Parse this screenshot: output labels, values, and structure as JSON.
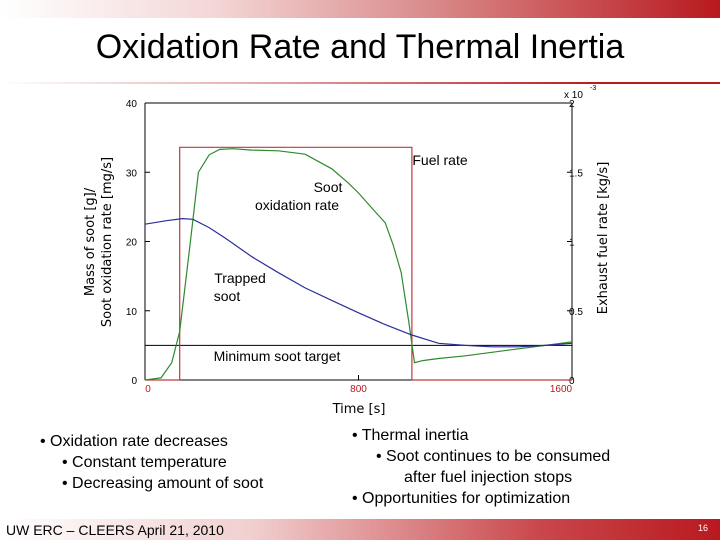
{
  "slide": {
    "title": "Oxidation Rate and Thermal Inertia",
    "footer": "UW ERC – CLEERS April 21, 2010",
    "page_number": "16",
    "accent_color": "#b8191e"
  },
  "bullets_left": {
    "main": "• Oxidation rate decreases",
    "sub1": "• Constant temperature",
    "sub2": "• Decreasing amount of soot"
  },
  "bullets_right": {
    "main1": "• Thermal inertia",
    "sub1": "• Soot continues to be consumed",
    "sub1b": "after fuel injection stops",
    "main2": "• Opportunities for optimization"
  },
  "chart_data": {
    "type": "line",
    "xlabel": "Time [s]",
    "ylabel_line1": "Mass of soot [g]/",
    "ylabel_line2": "Soot oxidation rate [mg/s]",
    "y2label": "Exhaust fuel rate [kg/s]",
    "y2_exponent_x": "x 10",
    "y2_exponent_sup": "-3",
    "xlim": [
      0,
      1600
    ],
    "ylim": [
      0,
      40
    ],
    "y2lim": [
      0,
      2
    ],
    "x_ticks": [
      "0",
      "800",
      "1600"
    ],
    "y_ticks": [
      "0",
      "10",
      "20",
      "30",
      "40"
    ],
    "y2_ticks": [
      "0",
      "0.5",
      "1",
      "1.5",
      "2"
    ],
    "grid": false,
    "annotations": {
      "fuel_rate": "Fuel rate",
      "soot_ox_1": "Soot",
      "soot_ox_2": "oxidation rate",
      "trapped_1": "Trapped",
      "trapped_2": "soot",
      "min_target": "Minimum soot target"
    },
    "series": [
      {
        "name": "Fuel rate",
        "color": "#c0393b",
        "axis": "right",
        "x": [
          0,
          130,
          130,
          1000,
          1000,
          1600
        ],
        "y": [
          0,
          0,
          1.68,
          1.68,
          0,
          0
        ]
      },
      {
        "name": "Soot oxidation rate",
        "color": "#2e8b2e",
        "axis": "left",
        "x": [
          0,
          60,
          100,
          130,
          170,
          200,
          240,
          280,
          330,
          400,
          500,
          600,
          700,
          760,
          800,
          860,
          900,
          930,
          960,
          990,
          1010,
          1040,
          1100,
          1200,
          1300,
          1400,
          1500,
          1600
        ],
        "y": [
          0,
          0.3,
          2.5,
          7,
          20,
          30,
          32.5,
          33.3,
          33.4,
          33.2,
          33.1,
          32.6,
          30.5,
          28.5,
          27,
          24.4,
          22.7,
          19.5,
          15.5,
          8,
          2.5,
          2.8,
          3.1,
          3.5,
          4.0,
          4.5,
          5.0,
          5.5
        ]
      },
      {
        "name": "Trapped soot",
        "color": "#2b2f9a",
        "axis": "left",
        "x": [
          0,
          80,
          140,
          180,
          240,
          300,
          400,
          500,
          600,
          700,
          800,
          900,
          1000,
          1100,
          1200,
          1300,
          1400,
          1500,
          1600
        ],
        "y": [
          22.5,
          23.0,
          23.3,
          23.2,
          22.0,
          20.5,
          17.8,
          15.5,
          13.3,
          11.5,
          9.7,
          8.0,
          6.5,
          5.3,
          5.0,
          4.8,
          4.8,
          5.0,
          5.3
        ]
      }
    ],
    "reference_line": {
      "name": "Minimum soot target",
      "y": 5,
      "color": "#000000"
    }
  }
}
